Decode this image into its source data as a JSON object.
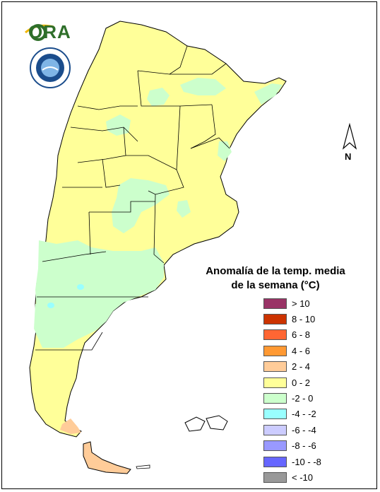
{
  "logos": {
    "ora_text": "ORA",
    "smn_icon": "servicio-meteorologico-nacional-seal"
  },
  "north_arrow": {
    "label": "N"
  },
  "legend": {
    "title_line1": "Anomalía de la temp. media",
    "title_line2": "de la semana (°C)",
    "items": [
      {
        "label": "> 10",
        "color": "#993366"
      },
      {
        "label": "8 - 10",
        "color": "#cc3300"
      },
      {
        "label": "6 - 8",
        "color": "#ff6633"
      },
      {
        "label": "4 - 6",
        "color": "#ff9933"
      },
      {
        "label": "2 - 4",
        "color": "#ffcc99"
      },
      {
        "label": "0 - 2",
        "color": "#ffff99"
      },
      {
        "label": "-2 - 0",
        "color": "#ccffcc"
      },
      {
        "label": "-4 - -2",
        "color": "#99ffff"
      },
      {
        "label": "-6 - -4",
        "color": "#ccccff"
      },
      {
        "label": "-8 - -6",
        "color": "#9999ff"
      },
      {
        "label": "-10 - -8",
        "color": "#6666ff"
      },
      {
        "label": "< -10",
        "color": "#999999"
      }
    ]
  },
  "map_colors": {
    "warm_0_2": "#ffff99",
    "cool_m2_0": "#ccffcc",
    "cold_m4_m2": "#99ffff",
    "warm_2_4": "#ffcc99",
    "border": "#000000"
  }
}
